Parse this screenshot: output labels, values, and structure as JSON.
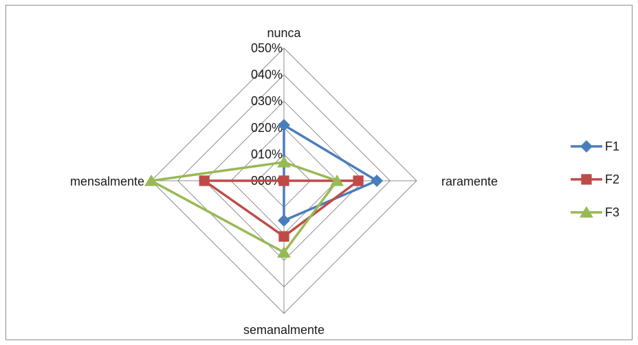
{
  "chart_data": {
    "type": "radar",
    "categories": [
      "nunca",
      "raramente",
      "semanalmente",
      "mensalmente"
    ],
    "ticks": [
      "000%",
      "010%",
      "020%",
      "030%",
      "040%",
      "050%"
    ],
    "range": [
      0,
      50
    ],
    "series": [
      {
        "name": "F1",
        "values": [
          21,
          35,
          15,
          0
        ],
        "color": "#4a7ebb",
        "marker": "diamond"
      },
      {
        "name": "F2",
        "values": [
          0,
          28,
          21,
          30
        ],
        "color": "#be4b48",
        "marker": "square"
      },
      {
        "name": "F3",
        "values": [
          7,
          20,
          27,
          50
        ],
        "color": "#98b954",
        "marker": "triangle"
      }
    ],
    "legend_position": "right",
    "grid": true
  }
}
